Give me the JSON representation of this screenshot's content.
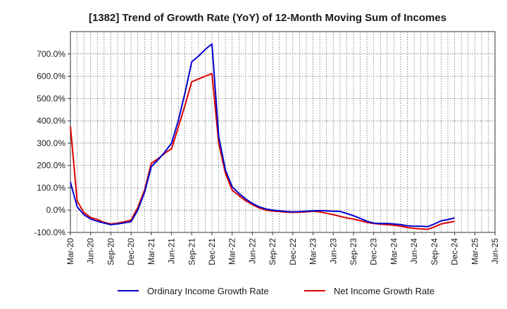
{
  "chart_data": {
    "type": "line",
    "title": "[1382]  Trend of Growth Rate (YoY) of 12-Month Moving Sum of Incomes",
    "xlabel": "",
    "ylabel": "",
    "grid": true,
    "legend_position": "bottom",
    "ylim": [
      -100,
      800
    ],
    "yticks": [
      -100,
      0,
      100,
      200,
      300,
      400,
      500,
      600,
      700
    ],
    "ytick_labels": [
      "-100.0%",
      "0.0%",
      "100.0%",
      "200.0%",
      "300.0%",
      "400.0%",
      "500.0%",
      "600.0%",
      "700.0%"
    ],
    "xtick_labels": [
      "Mar-20",
      "Jun-20",
      "Sep-20",
      "Dec-20",
      "Mar-21",
      "Jun-21",
      "Sep-21",
      "Dec-21",
      "Mar-22",
      "Jun-22",
      "Sep-22",
      "Dec-22",
      "Mar-23",
      "Jun-23",
      "Sep-23",
      "Dec-23",
      "Mar-24",
      "Jun-24",
      "Sep-24",
      "Dec-24",
      "Mar-25",
      "Jun-25"
    ],
    "x_months_count": 64,
    "series": [
      {
        "name": "Ordinary Income Growth Rate",
        "color": "#0000cc",
        "values": [
          125,
          15,
          -20,
          -40,
          -50,
          -58,
          -65,
          -62,
          -57,
          -52,
          0,
          80,
          195,
          225,
          260,
          300,
          400,
          525,
          665,
          690,
          720,
          745,
          330,
          180,
          105,
          75,
          50,
          30,
          15,
          5,
          0,
          -3,
          -6,
          -8,
          -7,
          -5,
          -3,
          -2,
          -3,
          -5,
          -6,
          -15,
          -25,
          -37,
          -50,
          -58,
          -60,
          -60,
          -62,
          -65,
          -70,
          -72,
          -72,
          -74,
          -62,
          -48,
          -42,
          -35
        ]
      },
      {
        "name": "Net Income Growth Rate",
        "color": "#dd0000",
        "values": [
          375,
          40,
          -10,
          -33,
          -42,
          -55,
          -62,
          -58,
          -52,
          -45,
          12,
          90,
          210,
          230,
          255,
          275,
          370,
          470,
          575,
          588,
          600,
          612,
          300,
          165,
          90,
          65,
          42,
          25,
          10,
          0,
          -4,
          -6,
          -9,
          -10,
          -9,
          -8,
          -5,
          -8,
          -14,
          -20,
          -28,
          -35,
          -40,
          -47,
          -55,
          -60,
          -63,
          -65,
          -68,
          -72,
          -78,
          -82,
          -84,
          -86,
          -75,
          -62,
          -56,
          -50
        ]
      }
    ]
  }
}
